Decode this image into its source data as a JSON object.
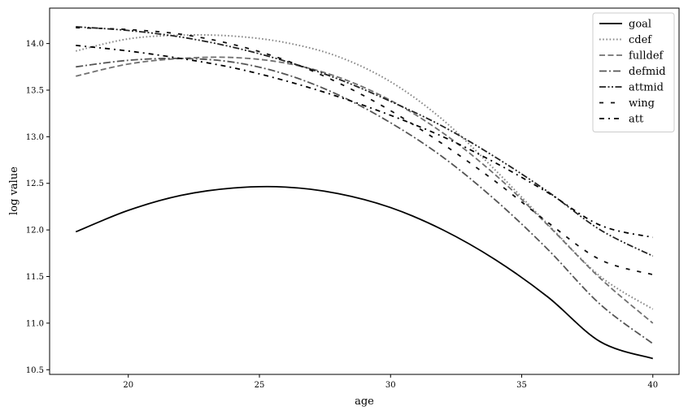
{
  "chart_data": {
    "type": "line",
    "title": "",
    "xlabel": "age",
    "ylabel": "log value",
    "xlim": [
      17,
      41
    ],
    "ylim": [
      10.45,
      14.38
    ],
    "xticks": [
      20,
      25,
      30,
      35,
      40
    ],
    "yticks": [
      10.5,
      11.0,
      11.5,
      12.0,
      12.5,
      13.0,
      13.5,
      14.0
    ],
    "ytick_labels": [
      "10.5",
      "11.0",
      "11.5",
      "12.0",
      "12.5",
      "13.0",
      "13.5",
      "14.0"
    ],
    "grid": false,
    "legend_position": "top-right",
    "x": [
      18,
      20,
      22,
      24,
      26,
      28,
      30,
      32,
      34,
      36,
      38,
      40
    ],
    "series": [
      {
        "name": "goal",
        "color": "#000000",
        "dash": "solid",
        "values": [
          11.98,
          12.21,
          12.37,
          12.45,
          12.46,
          12.39,
          12.24,
          12.0,
          11.68,
          11.28,
          10.8,
          10.62
        ]
      },
      {
        "name": "cdef",
        "color": "#888888",
        "dash": "dotted",
        "values": [
          13.92,
          14.05,
          14.09,
          14.08,
          14.01,
          13.86,
          13.59,
          13.18,
          12.64,
          12.06,
          11.5,
          11.15
        ]
      },
      {
        "name": "fulldef",
        "color": "#707070",
        "dash": "dashed",
        "values": [
          13.65,
          13.78,
          13.84,
          13.85,
          13.79,
          13.64,
          13.39,
          13.04,
          12.59,
          12.05,
          11.48,
          11.0
        ]
      },
      {
        "name": "defmid",
        "color": "#555555",
        "dash": "dashdot",
        "values": [
          13.75,
          13.82,
          13.84,
          13.8,
          13.67,
          13.45,
          13.15,
          12.78,
          12.32,
          11.79,
          11.2,
          10.78
        ]
      },
      {
        "name": "attmid",
        "color": "#222222",
        "dash": "dashdotdot",
        "values": [
          14.18,
          14.14,
          14.07,
          13.96,
          13.81,
          13.62,
          13.38,
          13.11,
          12.78,
          12.41,
          12.0,
          11.72
        ]
      },
      {
        "name": "wing",
        "color": "#111111",
        "dash": "loosedash",
        "values": [
          14.17,
          14.15,
          14.1,
          13.99,
          13.82,
          13.58,
          13.28,
          12.92,
          12.52,
          12.08,
          11.68,
          11.52
        ]
      },
      {
        "name": "att",
        "color": "#000000",
        "dash": "loosedashdot",
        "values": [
          13.98,
          13.92,
          13.84,
          13.74,
          13.6,
          13.43,
          13.23,
          13.0,
          12.72,
          12.4,
          12.05,
          11.92
        ]
      }
    ]
  }
}
